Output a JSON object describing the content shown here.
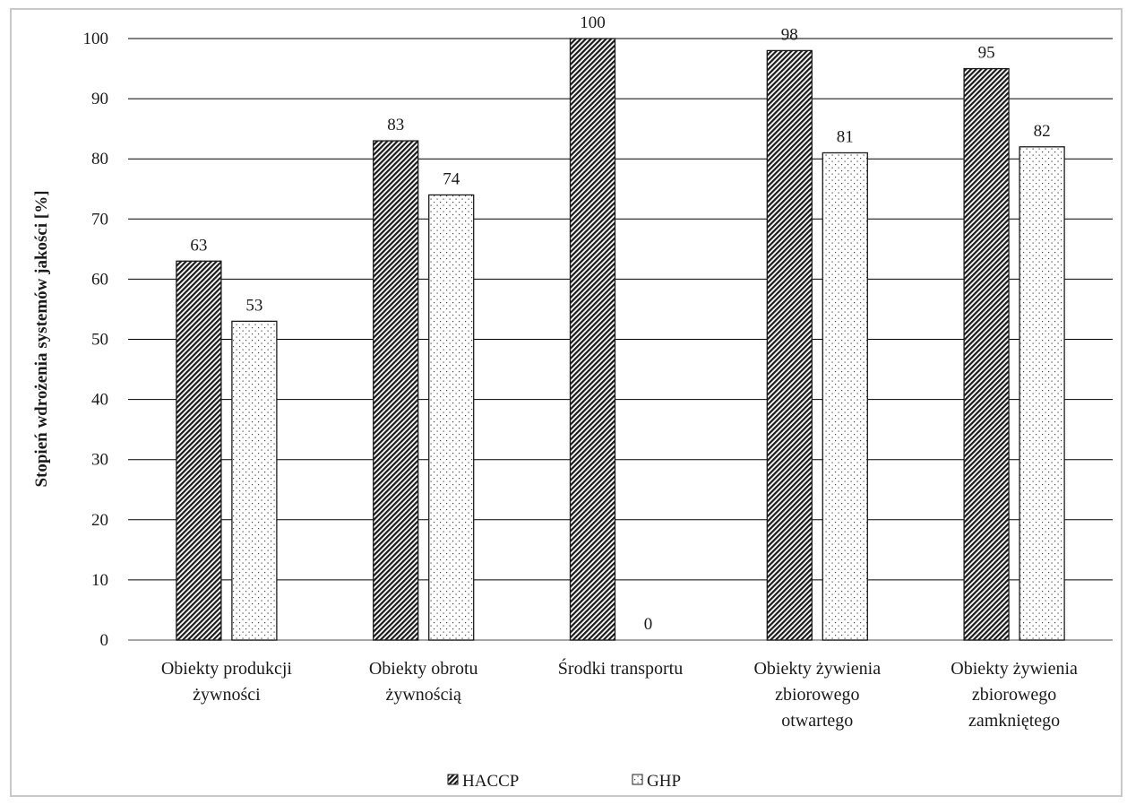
{
  "chart_data": {
    "type": "bar",
    "categories": [
      [
        "Obiekty produkcji",
        "żywności"
      ],
      [
        "Obiekty obrotu",
        "żywnością"
      ],
      [
        "Środki transportu"
      ],
      [
        "Obiekty żywienia",
        "zbiorowego",
        "otwartego"
      ],
      [
        "Obiekty żywienia",
        "zbiorowego",
        "zamkniętego"
      ]
    ],
    "series": [
      {
        "name": "HACCP",
        "values": [
          63,
          83,
          100,
          98,
          95
        ],
        "pattern": "diagonal-hatch"
      },
      {
        "name": "GHP",
        "values": [
          53,
          74,
          0,
          81,
          82
        ],
        "pattern": "dots"
      }
    ],
    "ylabel": "Stopień wdrożenia systemów jakości [%]",
    "xlabel": "",
    "ylim": [
      0,
      100
    ],
    "yticks": [
      0,
      10,
      20,
      30,
      40,
      50,
      60,
      70,
      80,
      90,
      100
    ],
    "grid": true,
    "legend_position": "bottom",
    "colors": {
      "grid": "#000000",
      "border": "#c8c8c8",
      "bar_outline": "#1a1a1a",
      "hatch": "#1a1a1a"
    }
  }
}
